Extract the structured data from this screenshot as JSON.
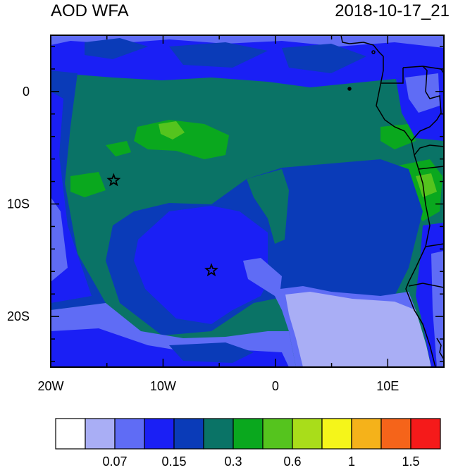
{
  "header": {
    "title_left": "AOD WFA",
    "title_right": "2018-10-17_21"
  },
  "axes": {
    "x_ticks": [
      {
        "label": "20W",
        "lon": -20
      },
      {
        "label": "10W",
        "lon": -10
      },
      {
        "label": "0",
        "lon": 0
      },
      {
        "label": "10E",
        "lon": 10
      }
    ],
    "y_ticks": [
      {
        "label": "0",
        "lat": 0
      },
      {
        "label": "10S",
        "lat": -10
      },
      {
        "label": "20S",
        "lat": -20
      }
    ],
    "lon_range": [
      -20,
      15
    ],
    "lat_range": [
      -24.5,
      5
    ]
  },
  "colorbar": {
    "colors": [
      "#ffffff",
      "#a9aef5",
      "#5f6cf5",
      "#1a1ff5",
      "#0a3bb8",
      "#0a7366",
      "#0aa81e",
      "#55c41e",
      "#a9dd1a",
      "#f5f51a",
      "#f5b21a",
      "#f5641a",
      "#f51a1a"
    ],
    "labels": [
      {
        "text": "0.07",
        "boundary": 2
      },
      {
        "text": "0.15",
        "boundary": 4
      },
      {
        "text": "0.3",
        "boundary": 6
      },
      {
        "text": "0.6",
        "boundary": 8
      },
      {
        "text": "1",
        "boundary": 10
      },
      {
        "text": "1.5",
        "boundary": 12
      }
    ]
  },
  "markers": [
    {
      "name": "site-marker-north",
      "lon": -14.4,
      "lat": -7.9
    },
    {
      "name": "site-marker-south",
      "lon": -5.7,
      "lat": -15.9
    }
  ]
}
